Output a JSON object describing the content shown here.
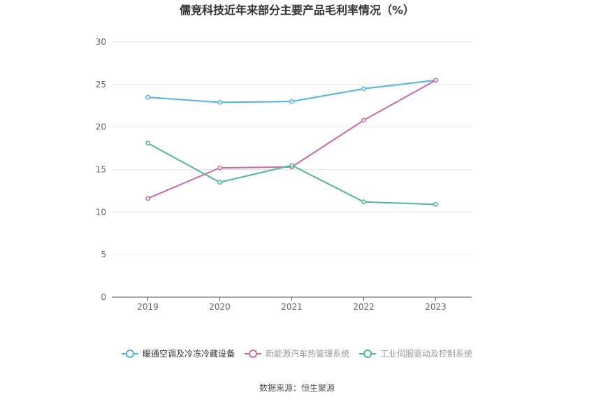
{
  "chart_data": {
    "type": "line",
    "title": "儒竞科技近年来部分主要产品毛利率情况（%）",
    "xlabel": "",
    "ylabel": "",
    "x": [
      "2019",
      "2020",
      "2021",
      "2022",
      "2023"
    ],
    "ylim": [
      0,
      30
    ],
    "yticks": [
      0,
      5,
      10,
      15,
      20,
      25,
      30
    ],
    "grid": true,
    "legend_position": "bottom",
    "series": [
      {
        "name": "暖通空调及冷冻冷藏设备",
        "color": "#4fb3e8",
        "values": [
          23.5,
          22.9,
          23.0,
          24.5,
          25.5
        ]
      },
      {
        "name": "新能源汽车热管理系统",
        "color": "#d066a8",
        "values": [
          11.6,
          15.2,
          15.3,
          20.8,
          25.5
        ]
      },
      {
        "name": "工业伺服驱动及控制系统",
        "color": "#4db89a",
        "values": [
          18.1,
          13.5,
          15.5,
          11.2,
          10.9
        ]
      }
    ]
  },
  "source_text": "数据来源：恒生聚源"
}
